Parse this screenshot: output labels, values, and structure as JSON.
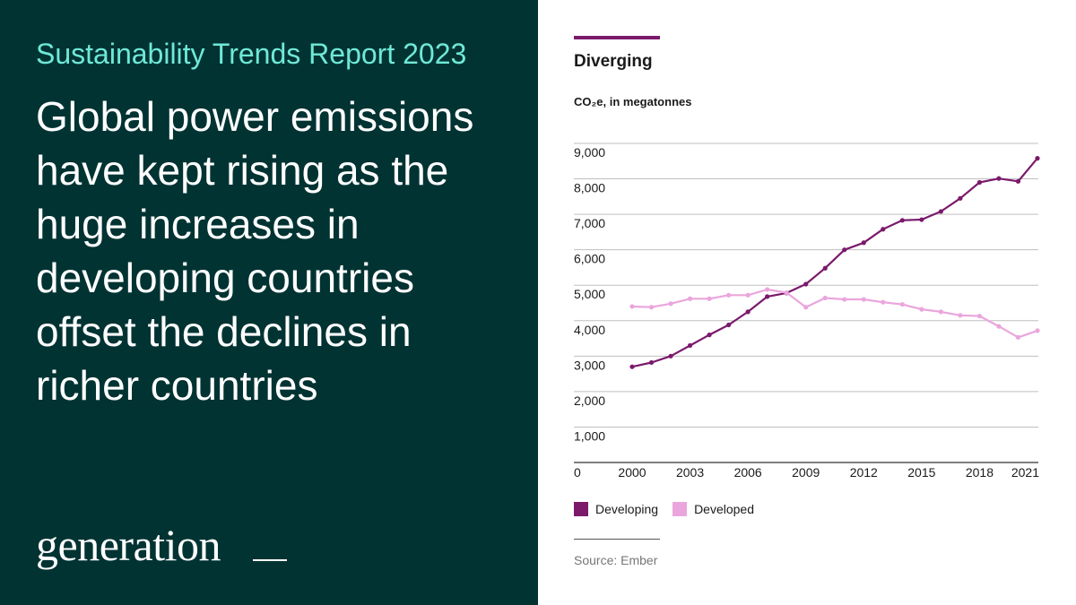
{
  "report_title": "Sustainability Trends Report 2023",
  "headline": "Global power emissions have kept rising as the huge increases in developing countries offset the declines in richer countries",
  "brand": "generation",
  "source": "Source: Ember",
  "colors": {
    "panel_bg": "#023333",
    "report_title": "#6fe9d7",
    "developing": "#7b1a6b",
    "developed": "#eaa6dc"
  },
  "chart_data": {
    "type": "line",
    "title": "Diverging",
    "ylabel": "CO₂e, in megatonnes",
    "xlabel": "",
    "ylim": [
      0,
      9000
    ],
    "xlim": [
      1998,
      2021
    ],
    "yticks": [
      0,
      1000,
      2000,
      3000,
      4000,
      5000,
      6000,
      7000,
      8000,
      9000
    ],
    "ytick_labels": [
      "0",
      "1,000",
      "2,000",
      "3,000",
      "4,000",
      "5,000",
      "6,000",
      "7,000",
      "8,000",
      "9,000"
    ],
    "xticks": [
      2000,
      2003,
      2006,
      2009,
      2012,
      2015,
      2018,
      2021
    ],
    "xtick_labels": [
      "2000",
      "2003",
      "2006",
      "2009",
      "2012",
      "2015",
      "2018",
      "2021"
    ],
    "grid": true,
    "legend_position": "bottom-left",
    "x": [
      2000,
      2001,
      2002,
      2003,
      2004,
      2005,
      2006,
      2007,
      2008,
      2009,
      2010,
      2011,
      2012,
      2013,
      2014,
      2015,
      2016,
      2017,
      2018,
      2019,
      2020,
      2021
    ],
    "series": [
      {
        "name": "Developing",
        "color": "#7b1a6b",
        "values": [
          2700,
          2820,
          3000,
          3300,
          3600,
          3880,
          4250,
          4680,
          4780,
          5030,
          5480,
          6000,
          6200,
          6580,
          6830,
          6850,
          7080,
          7450,
          7900,
          8010,
          7930,
          8580
        ]
      },
      {
        "name": "Developed",
        "color": "#eaa6dc",
        "values": [
          4400,
          4380,
          4480,
          4620,
          4620,
          4720,
          4720,
          4880,
          4790,
          4380,
          4640,
          4600,
          4600,
          4520,
          4460,
          4320,
          4250,
          4150,
          4130,
          3840,
          3530,
          3720
        ]
      }
    ]
  }
}
